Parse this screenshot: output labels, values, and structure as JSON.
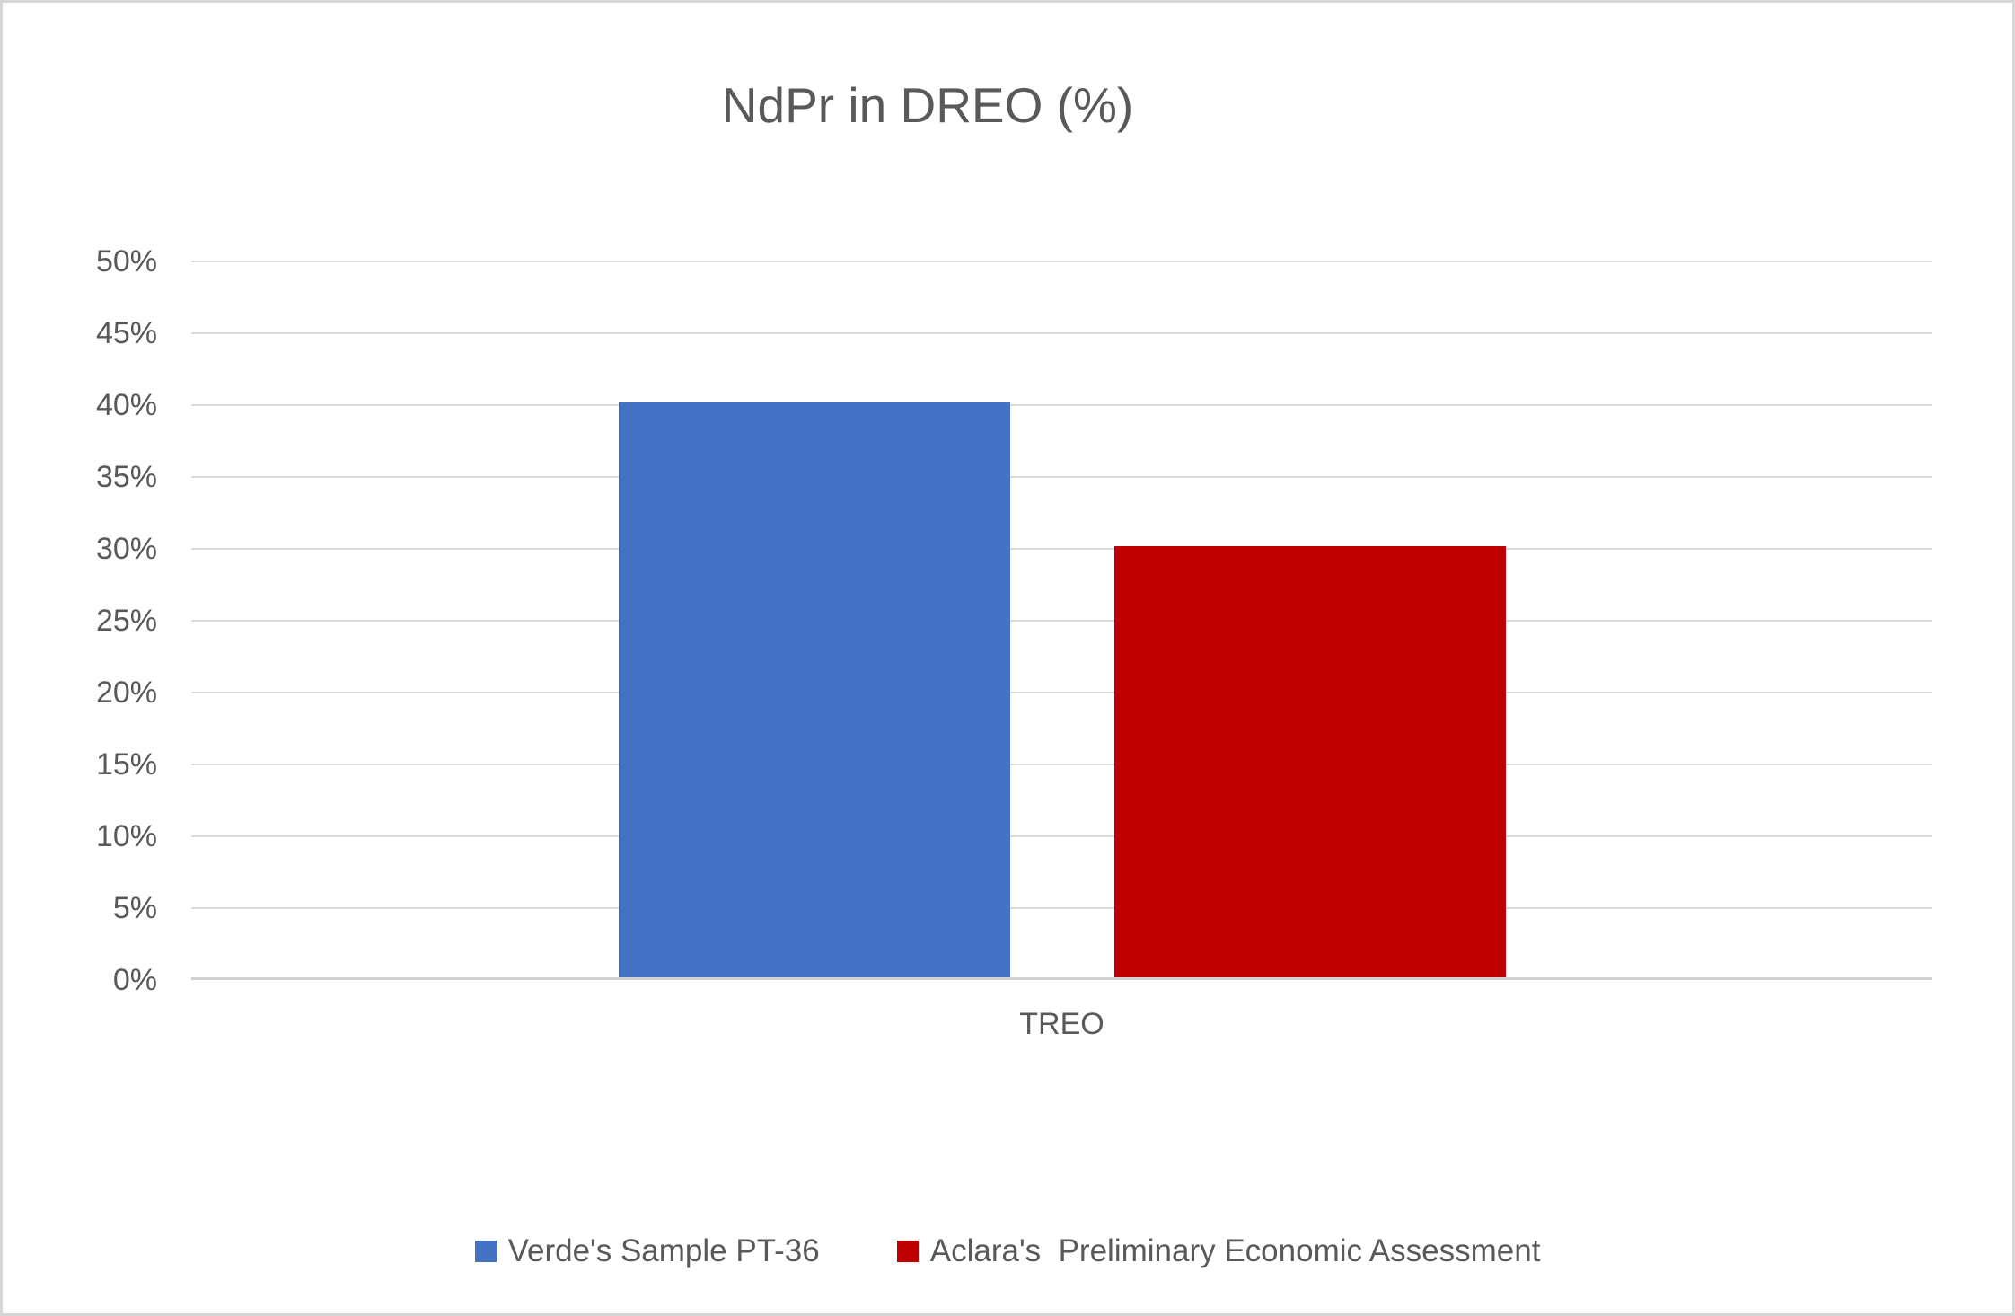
{
  "frame": {
    "background_color": "#FFFFFF",
    "border_color": "#D6D6D6",
    "text_color": "#595959",
    "gridline_color": "#D9D9D9",
    "axis_line_color": "#D1D1D1"
  },
  "chart_data": {
    "type": "bar",
    "title": "NdPr in DREO (%)",
    "xlabel": "",
    "ylabel": "",
    "categories": [
      "TREO"
    ],
    "series": [
      {
        "name": "Verde's Sample PT-36",
        "values": [
          40
        ],
        "color": "#4472C4"
      },
      {
        "name": "Aclara's  Preliminary Economic Assessment",
        "values": [
          30
        ],
        "color": "#C00000"
      }
    ],
    "ylim": [
      0,
      50
    ],
    "ytick_step": 5,
    "ytick_labels": [
      "0%",
      "5%",
      "10%",
      "15%",
      "20%",
      "25%",
      "30%",
      "35%",
      "40%",
      "45%",
      "50%"
    ],
    "value_format": "percent",
    "grid": true,
    "legend_position": "bottom"
  }
}
